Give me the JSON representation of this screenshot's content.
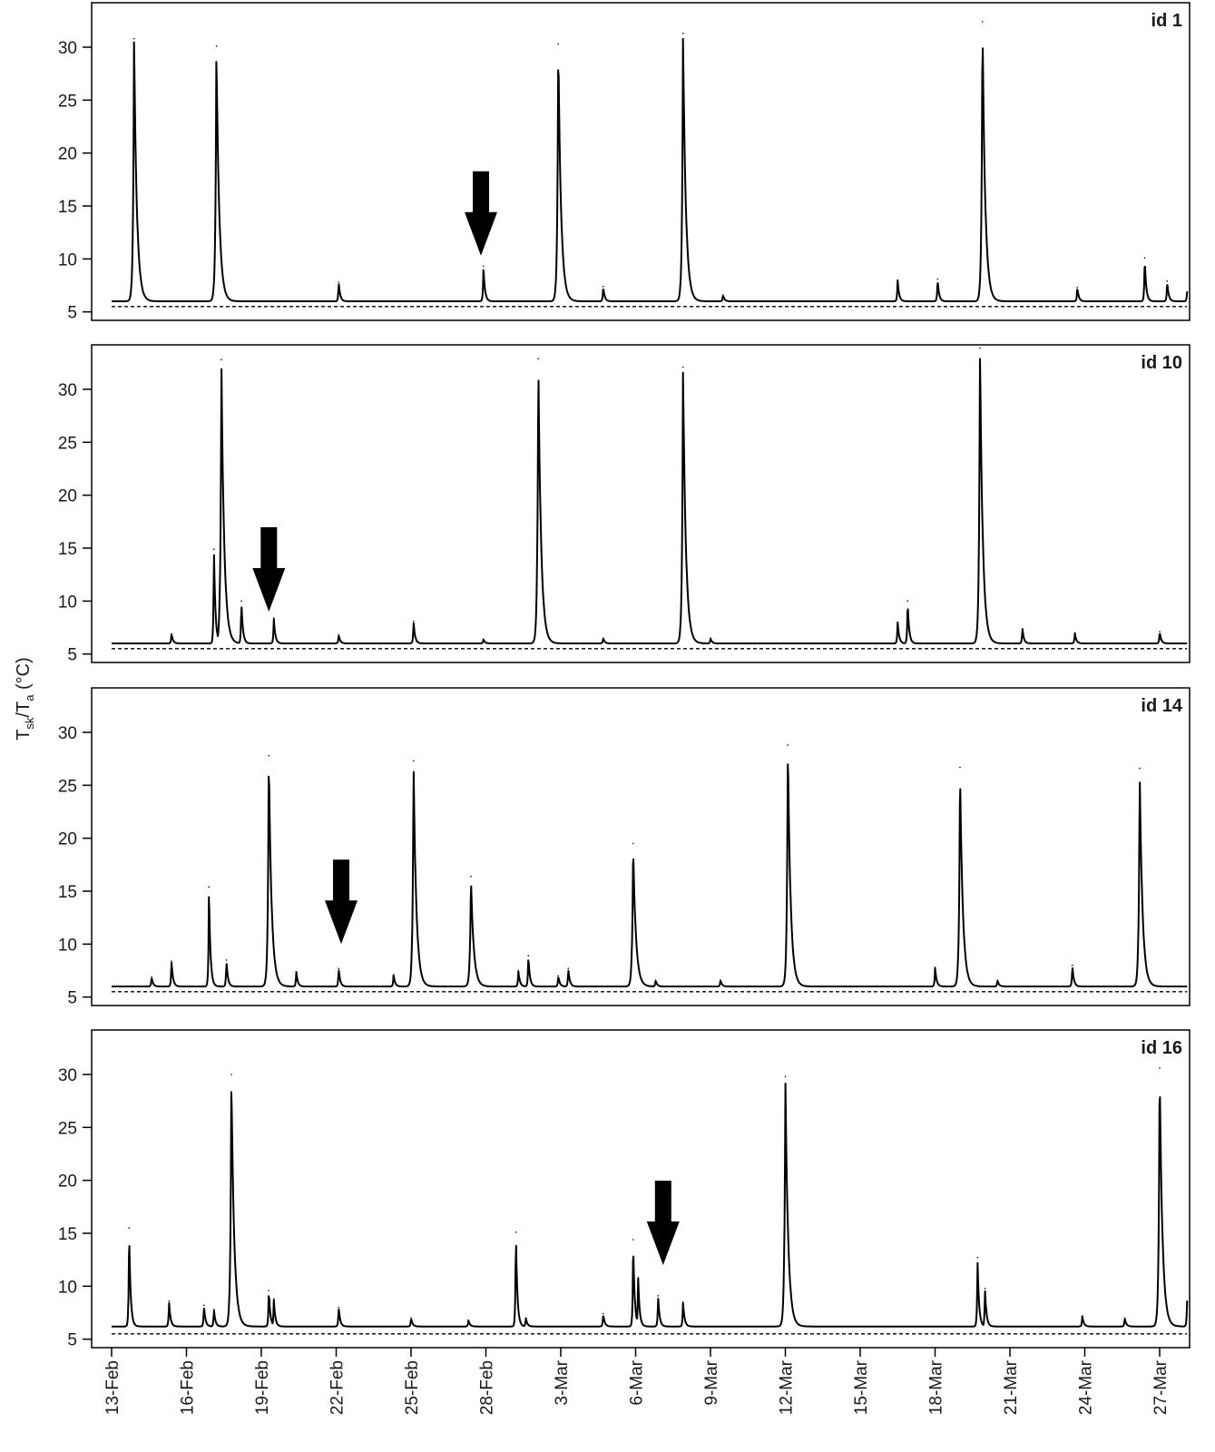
{
  "figure": {
    "ylabel_main": "T",
    "ylabel_sub1": "sk",
    "ylabel_mid": "/T",
    "ylabel_sub2": "a",
    "ylabel_unit": " (°C)",
    "line_color": "#000000"
  },
  "chart_data": [
    {
      "type": "line",
      "panel_label": "id 1",
      "x_tick_labels": [
        "13-Feb",
        "16-Feb",
        "19-Feb",
        "22-Feb",
        "25-Feb",
        "28-Feb",
        "3-Mar",
        "6-Mar",
        "9-Mar",
        "12-Mar",
        "15-Mar",
        "18-Mar",
        "21-Mar",
        "24-Mar",
        "27-Mar"
      ],
      "x_ticks": [
        0,
        3,
        6,
        9,
        12,
        15,
        18,
        21,
        24,
        27,
        30,
        33,
        36,
        39,
        42
      ],
      "xlim": [
        -0.8,
        43.2
      ],
      "y_ticks": [
        5,
        10,
        15,
        20,
        25,
        30
      ],
      "ylim": [
        4.2,
        34.2
      ],
      "baseline": 6,
      "reference_line": 5.5,
      "arrow_day": 14.8,
      "arrow_value": 10.3,
      "spikes": [
        {
          "day": 0.9,
          "peak": 30.8
        },
        {
          "day": 4.2,
          "peak": 30.1
        },
        {
          "day": 9.1,
          "peak": 7.8
        },
        {
          "day": 14.9,
          "peak": 9.3
        },
        {
          "day": 17.9,
          "peak": 30.3
        },
        {
          "day": 19.7,
          "peak": 7.4
        },
        {
          "day": 22.9,
          "peak": 31.3
        },
        {
          "day": 24.5,
          "peak": 6.6
        },
        {
          "day": 31.5,
          "peak": 8.0
        },
        {
          "day": 33.1,
          "peak": 8.1
        },
        {
          "day": 34.9,
          "peak": 32.4
        },
        {
          "day": 38.7,
          "peak": 7.3
        },
        {
          "day": 41.4,
          "peak": 10.1
        },
        {
          "day": 42.3,
          "peak": 7.9
        },
        {
          "day": 43.1,
          "peak": 6.9
        }
      ]
    },
    {
      "type": "line",
      "panel_label": "id 10",
      "x_tick_labels": [
        "13-Feb",
        "16-Feb",
        "19-Feb",
        "22-Feb",
        "25-Feb",
        "28-Feb",
        "3-Mar",
        "6-Mar",
        "9-Mar",
        "12-Mar",
        "15-Mar",
        "18-Mar",
        "21-Mar",
        "24-Mar",
        "27-Mar"
      ],
      "x_ticks": [
        0,
        3,
        6,
        9,
        12,
        15,
        18,
        21,
        24,
        27,
        30,
        33,
        36,
        39,
        42
      ],
      "xlim": [
        -0.8,
        43.2
      ],
      "y_ticks": [
        5,
        10,
        15,
        20,
        25,
        30
      ],
      "ylim": [
        4.2,
        34.2
      ],
      "baseline": 6,
      "reference_line": 5.5,
      "arrow_day": 6.3,
      "arrow_value": 9.0,
      "spikes": [
        {
          "day": 2.4,
          "peak": 6.9
        },
        {
          "day": 4.1,
          "peak": 14.9
        },
        {
          "day": 4.4,
          "peak": 32.8
        },
        {
          "day": 5.2,
          "peak": 10.0
        },
        {
          "day": 6.5,
          "peak": 8.4
        },
        {
          "day": 9.1,
          "peak": 6.8
        },
        {
          "day": 12.1,
          "peak": 8.1
        },
        {
          "day": 14.9,
          "peak": 6.4
        },
        {
          "day": 17.1,
          "peak": 32.9
        },
        {
          "day": 19.7,
          "peak": 6.5
        },
        {
          "day": 22.9,
          "peak": 32.1
        },
        {
          "day": 24.0,
          "peak": 6.5
        },
        {
          "day": 31.5,
          "peak": 8.0
        },
        {
          "day": 31.9,
          "peak": 10.0
        },
        {
          "day": 36.5,
          "peak": 7.4
        },
        {
          "day": 34.8,
          "peak": 33.9
        },
        {
          "day": 38.6,
          "peak": 7.0
        },
        {
          "day": 42.0,
          "peak": 7.1
        }
      ]
    },
    {
      "type": "line",
      "panel_label": "id 14",
      "x_tick_labels": [
        "13-Feb",
        "16-Feb",
        "19-Feb",
        "22-Feb",
        "25-Feb",
        "28-Feb",
        "3-Mar",
        "6-Mar",
        "9-Mar",
        "12-Mar",
        "15-Mar",
        "18-Mar",
        "21-Mar",
        "24-Mar",
        "27-Mar"
      ],
      "x_ticks": [
        0,
        3,
        6,
        9,
        12,
        15,
        18,
        21,
        24,
        27,
        30,
        33,
        36,
        39,
        42
      ],
      "xlim": [
        -0.8,
        43.2
      ],
      "y_ticks": [
        5,
        10,
        15,
        20,
        25,
        30
      ],
      "ylim": [
        4.2,
        34.2
      ],
      "baseline": 6,
      "reference_line": 5.5,
      "arrow_day": 9.2,
      "arrow_value": 10.0,
      "spikes": [
        {
          "day": 1.6,
          "peak": 6.9
        },
        {
          "day": 2.4,
          "peak": 8.4
        },
        {
          "day": 3.9,
          "peak": 15.4
        },
        {
          "day": 4.6,
          "peak": 8.5
        },
        {
          "day": 6.3,
          "peak": 27.8
        },
        {
          "day": 7.4,
          "peak": 7.4
        },
        {
          "day": 9.1,
          "peak": 7.7
        },
        {
          "day": 11.3,
          "peak": 7.1
        },
        {
          "day": 12.1,
          "peak": 27.3
        },
        {
          "day": 14.4,
          "peak": 16.4
        },
        {
          "day": 16.3,
          "peak": 7.5
        },
        {
          "day": 16.7,
          "peak": 8.9
        },
        {
          "day": 17.9,
          "peak": 7.0
        },
        {
          "day": 18.3,
          "peak": 7.7
        },
        {
          "day": 20.9,
          "peak": 19.5
        },
        {
          "day": 21.8,
          "peak": 6.6
        },
        {
          "day": 24.4,
          "peak": 6.6
        },
        {
          "day": 27.1,
          "peak": 28.8
        },
        {
          "day": 33.0,
          "peak": 7.8
        },
        {
          "day": 34.0,
          "peak": 26.7
        },
        {
          "day": 35.5,
          "peak": 6.6
        },
        {
          "day": 38.5,
          "peak": 8.0
        },
        {
          "day": 41.2,
          "peak": 26.6
        }
      ]
    },
    {
      "type": "line",
      "panel_label": "id 16",
      "x_tick_labels": [
        "13-Feb",
        "16-Feb",
        "19-Feb",
        "22-Feb",
        "25-Feb",
        "28-Feb",
        "3-Mar",
        "6-Mar",
        "9-Mar",
        "12-Mar",
        "15-Mar",
        "18-Mar",
        "21-Mar",
        "24-Mar",
        "27-Mar"
      ],
      "x_ticks": [
        0,
        3,
        6,
        9,
        12,
        15,
        18,
        21,
        24,
        27,
        30,
        33,
        36,
        39,
        42
      ],
      "xlim": [
        -0.8,
        43.2
      ],
      "y_ticks": [
        5,
        10,
        15,
        20,
        25,
        30
      ],
      "ylim": [
        4.2,
        34.2
      ],
      "baseline": 6.2,
      "reference_line": 5.5,
      "arrow_day": 22.1,
      "arrow_value": 12.0,
      "spikes": [
        {
          "day": 0.7,
          "peak": 15.5
        },
        {
          "day": 2.3,
          "peak": 8.6
        },
        {
          "day": 3.7,
          "peak": 8.2
        },
        {
          "day": 4.1,
          "peak": 7.8
        },
        {
          "day": 4.8,
          "peak": 30.0
        },
        {
          "day": 6.3,
          "peak": 9.6
        },
        {
          "day": 6.5,
          "peak": 8.8
        },
        {
          "day": 9.1,
          "peak": 8.0
        },
        {
          "day": 12.0,
          "peak": 7.0
        },
        {
          "day": 14.3,
          "peak": 6.8
        },
        {
          "day": 16.2,
          "peak": 15.1
        },
        {
          "day": 16.6,
          "peak": 7.0
        },
        {
          "day": 19.7,
          "peak": 7.4
        },
        {
          "day": 20.9,
          "peak": 14.4
        },
        {
          "day": 21.1,
          "peak": 10.8
        },
        {
          "day": 21.9,
          "peak": 9.1
        },
        {
          "day": 22.9,
          "peak": 8.5
        },
        {
          "day": 27.0,
          "peak": 29.8
        },
        {
          "day": 34.7,
          "peak": 12.7
        },
        {
          "day": 35.0,
          "peak": 9.8
        },
        {
          "day": 38.9,
          "peak": 7.2
        },
        {
          "day": 40.6,
          "peak": 7.0
        },
        {
          "day": 42.0,
          "peak": 30.6
        },
        {
          "day": 43.1,
          "peak": 8.6
        }
      ]
    }
  ]
}
